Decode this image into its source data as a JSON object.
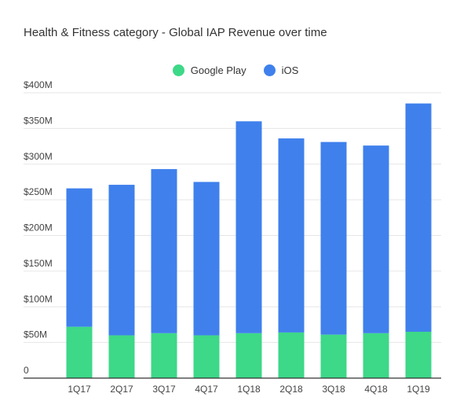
{
  "chart_data": {
    "type": "bar",
    "stacked": true,
    "title": "Health & Fitness category - Global IAP Revenue over time",
    "categories": [
      "1Q17",
      "2Q17",
      "3Q17",
      "4Q17",
      "1Q18",
      "2Q18",
      "3Q18",
      "4Q18",
      "1Q19"
    ],
    "series": [
      {
        "name": "Google Play",
        "color": "#3dd888",
        "values": [
          72,
          60,
          63,
          60,
          63,
          64,
          61,
          63,
          65
        ]
      },
      {
        "name": "iOS",
        "color": "#3f80ec",
        "values": [
          194,
          211,
          230,
          215,
          297,
          272,
          270,
          263,
          320
        ]
      }
    ],
    "yticks": [
      0,
      50,
      100,
      150,
      200,
      250,
      300,
      350,
      400
    ],
    "ytick_labels": [
      "0",
      "$50M",
      "$100M",
      "$150M",
      "$200M",
      "$250M",
      "$300M",
      "$350M",
      "$400M"
    ],
    "ylim": [
      0,
      400
    ],
    "xlabel": "",
    "ylabel": "",
    "legend_position": "top-center",
    "grid": true
  }
}
